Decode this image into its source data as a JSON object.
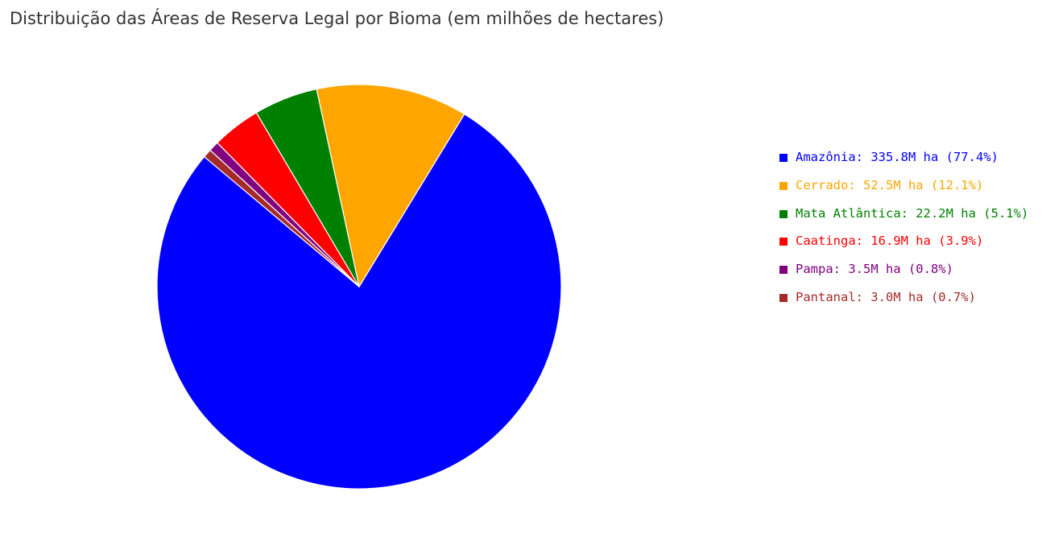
{
  "chart_data": {
    "type": "pie",
    "title": "Distribuição das Áreas de Reserva Legal por Bioma (em milhões de hectares)",
    "start_angle_deg": 140,
    "direction": "counterclockwise",
    "legend_position": "right",
    "slices": [
      {
        "label": "Amazônia",
        "value": 335.8,
        "percent": 77.4,
        "color": "#0000ff",
        "text": "Amazônia: 335.8M ha (77.4%)"
      },
      {
        "label": "Cerrado",
        "value": 52.5,
        "percent": 12.1,
        "color": "#ffa500",
        "text": "Cerrado: 52.5M ha (12.1%)"
      },
      {
        "label": "Mata Atlântica",
        "value": 22.2,
        "percent": 5.1,
        "color": "#008000",
        "text": "Mata Atlântica: 22.2M ha (5.1%)"
      },
      {
        "label": "Caatinga",
        "value": 16.9,
        "percent": 3.9,
        "color": "#ff0000",
        "text": "Caatinga: 16.9M ha (3.9%)"
      },
      {
        "label": "Pampa",
        "value": 3.5,
        "percent": 0.8,
        "color": "#800080",
        "text": "Pampa: 3.5M ha (0.8%)"
      },
      {
        "label": "Pantanal",
        "value": 3.0,
        "percent": 0.7,
        "color": "#a52a2a",
        "text": "Pantanal: 3.0M ha (0.7%)"
      }
    ]
  }
}
